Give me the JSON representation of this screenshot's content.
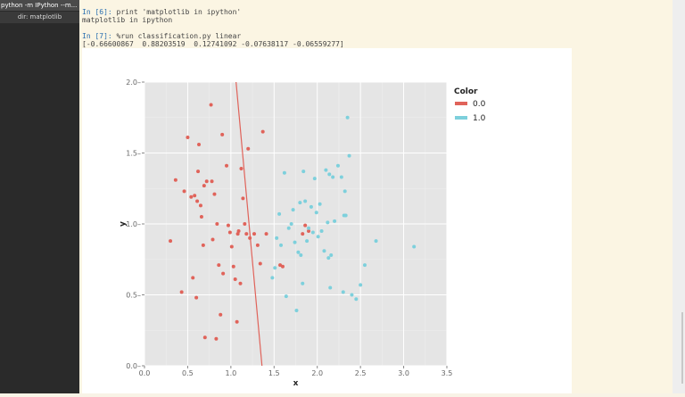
{
  "window": {
    "title": "python -m IPython --m...",
    "subtitle": "dir: matplotlib"
  },
  "console": {
    "in6": {
      "prompt": "In [6]:",
      "code": "print 'matplotlib in ipython'"
    },
    "out6": "matplotlib in ipython",
    "in7": {
      "prompt": "In [7]:",
      "code": "%run classification.py linear"
    },
    "out7": "[-0.66600867  0.88203519  0.12741092 -0.07638117 -0.06559277]"
  },
  "chart_data": {
    "type": "scatter",
    "xlabel": "x",
    "ylabel": "y",
    "xlim": [
      0,
      3.5
    ],
    "ylim": [
      0,
      2
    ],
    "xticks": [
      "0.0",
      "0.5",
      "1.0",
      "1.5",
      "2.0",
      "2.5",
      "3.0",
      "3.5"
    ],
    "yticks": [
      "0.0",
      "0.5",
      "1.0",
      "1.5",
      "2.0"
    ],
    "background": "#e5e5e5",
    "grid": true,
    "legend": {
      "title": "Color",
      "placement": "right"
    },
    "series": [
      {
        "name": "0.0",
        "color": "#e0635a",
        "points": [
          [
            0.3,
            0.88
          ],
          [
            0.36,
            1.31
          ],
          [
            0.43,
            0.52
          ],
          [
            0.46,
            1.23
          ],
          [
            0.5,
            1.61
          ],
          [
            0.54,
            1.19
          ],
          [
            0.56,
            0.62
          ],
          [
            0.58,
            1.2
          ],
          [
            0.6,
            0.48
          ],
          [
            0.61,
            1.16
          ],
          [
            0.62,
            1.37
          ],
          [
            0.63,
            1.56
          ],
          [
            0.65,
            1.13
          ],
          [
            0.66,
            1.05
          ],
          [
            0.68,
            0.85
          ],
          [
            0.69,
            1.27
          ],
          [
            0.7,
            0.2
          ],
          [
            0.72,
            1.3
          ],
          [
            0.77,
            1.84
          ],
          [
            0.78,
            1.3
          ],
          [
            0.79,
            0.89
          ],
          [
            0.81,
            1.21
          ],
          [
            0.83,
            0.19
          ],
          [
            0.84,
            1.0
          ],
          [
            0.86,
            0.71
          ],
          [
            0.88,
            0.36
          ],
          [
            0.9,
            1.63
          ],
          [
            0.91,
            0.65
          ],
          [
            0.95,
            1.41
          ],
          [
            0.97,
            0.99
          ],
          [
            0.99,
            0.94
          ],
          [
            1.01,
            0.84
          ],
          [
            1.03,
            0.7
          ],
          [
            1.05,
            0.61
          ],
          [
            1.07,
            0.31
          ],
          [
            1.08,
            0.93
          ],
          [
            1.09,
            0.95
          ],
          [
            1.11,
            0.58
          ],
          [
            1.12,
            1.39
          ],
          [
            1.14,
            1.18
          ],
          [
            1.16,
            1.0
          ],
          [
            1.18,
            0.93
          ],
          [
            1.2,
            1.53
          ],
          [
            1.22,
            0.9
          ],
          [
            1.27,
            0.93
          ],
          [
            1.31,
            0.85
          ],
          [
            1.34,
            0.72
          ],
          [
            1.37,
            1.65
          ],
          [
            1.41,
            0.93
          ],
          [
            1.57,
            0.71
          ],
          [
            1.6,
            0.7
          ],
          [
            1.83,
            0.93
          ],
          [
            1.86,
            0.99
          ],
          [
            1.9,
            0.95
          ]
        ]
      },
      {
        "name": "1.0",
        "color": "#7dd0dc",
        "points": [
          [
            1.48,
            0.62
          ],
          [
            1.51,
            0.69
          ],
          [
            1.53,
            0.9
          ],
          [
            1.56,
            1.07
          ],
          [
            1.58,
            0.85
          ],
          [
            1.62,
            1.36
          ],
          [
            1.64,
            0.49
          ],
          [
            1.67,
            0.97
          ],
          [
            1.7,
            1.0
          ],
          [
            1.72,
            1.1
          ],
          [
            1.74,
            0.87
          ],
          [
            1.76,
            0.39
          ],
          [
            1.78,
            0.8
          ],
          [
            1.8,
            1.15
          ],
          [
            1.81,
            0.78
          ],
          [
            1.83,
            0.58
          ],
          [
            1.84,
            1.37
          ],
          [
            1.86,
            1.16
          ],
          [
            1.88,
            0.88
          ],
          [
            1.9,
            0.97
          ],
          [
            1.93,
            1.12
          ],
          [
            1.95,
            0.94
          ],
          [
            1.97,
            1.32
          ],
          [
            1.99,
            1.08
          ],
          [
            2.01,
            0.91
          ],
          [
            2.03,
            1.14
          ],
          [
            2.05,
            0.95
          ],
          [
            2.08,
            0.81
          ],
          [
            2.1,
            1.38
          ],
          [
            2.12,
            1.01
          ],
          [
            2.13,
            0.76
          ],
          [
            2.14,
            1.35
          ],
          [
            2.15,
            0.55
          ],
          [
            2.16,
            0.78
          ],
          [
            2.18,
            1.33
          ],
          [
            2.2,
            1.02
          ],
          [
            2.24,
            1.41
          ],
          [
            2.28,
            1.33
          ],
          [
            2.3,
            0.52
          ],
          [
            2.31,
            1.06
          ],
          [
            2.32,
            1.23
          ],
          [
            2.33,
            1.06
          ],
          [
            2.35,
            1.75
          ],
          [
            2.37,
            1.48
          ],
          [
            2.4,
            0.5
          ],
          [
            2.45,
            0.47
          ],
          [
            2.5,
            0.57
          ],
          [
            2.55,
            0.71
          ],
          [
            2.68,
            0.88
          ],
          [
            3.12,
            0.84
          ]
        ]
      }
    ],
    "boundary_line": {
      "color": "#e0635a",
      "x_at_y_top": 1.06,
      "x_at_y_bottom": 1.36
    }
  }
}
